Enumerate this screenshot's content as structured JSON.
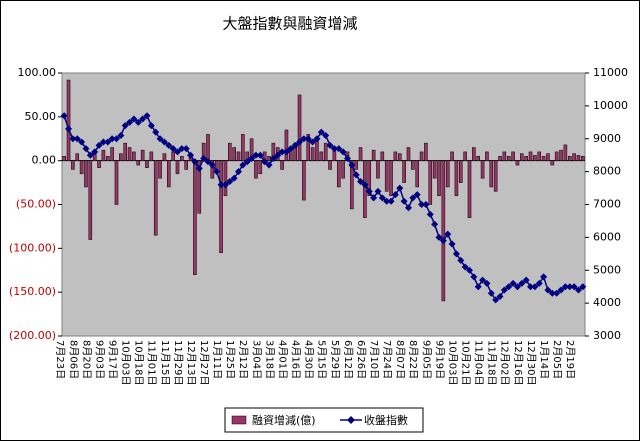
{
  "chart_data": {
    "type": "bar_line",
    "title": "大盤指數與融資增減",
    "categories": [
      "7月23日",
      null,
      null,
      "8月06日",
      null,
      null,
      "8月20日",
      null,
      null,
      "9月03日",
      null,
      null,
      "9月17日",
      null,
      null,
      "10月03日",
      null,
      null,
      "10月18日",
      null,
      null,
      "11月01日",
      null,
      null,
      "11月15日",
      null,
      null,
      "11月29日",
      null,
      null,
      "12月13日",
      null,
      null,
      "12月27日",
      null,
      null,
      "1月11日",
      null,
      null,
      "1月25日",
      null,
      null,
      "2月12日",
      null,
      null,
      "3月04日",
      null,
      null,
      "3月18日",
      null,
      null,
      "4月01日",
      null,
      null,
      "4月16日",
      null,
      null,
      "4月30日",
      null,
      null,
      "5月15日",
      null,
      null,
      "5月29日",
      null,
      null,
      "6月12日",
      null,
      null,
      "6月26日",
      null,
      null,
      "7月10日",
      null,
      null,
      "7月24日",
      null,
      null,
      "8月07日",
      null,
      null,
      "8月22日",
      null,
      null,
      "9月05日",
      null,
      null,
      "9月19日",
      null,
      null,
      "10月03日",
      null,
      null,
      "10月21日",
      null,
      null,
      "11月04日",
      null,
      null,
      "11月18日",
      null,
      null,
      "12月02日",
      null,
      null,
      "12月16日",
      null,
      null,
      "12月30日",
      null,
      null,
      "1月14日",
      null,
      null,
      "2月05日",
      null,
      null,
      "2月19日",
      null,
      null
    ],
    "series": [
      {
        "name": "融資增減(億)",
        "type": "bar",
        "color": "#993366",
        "values": [
          5,
          92,
          -10,
          8,
          -15,
          -30,
          -90,
          10,
          -8,
          12,
          5,
          15,
          -50,
          8,
          20,
          15,
          10,
          -5,
          12,
          -8,
          10,
          -85,
          -20,
          8,
          -30,
          10,
          -15,
          5,
          -10,
          8,
          -130,
          -60,
          20,
          30,
          -20,
          -10,
          -105,
          -40,
          20,
          15,
          10,
          30,
          10,
          25,
          -20,
          -15,
          10,
          5,
          20,
          15,
          -10,
          35,
          15,
          20,
          75,
          -45,
          30,
          15,
          25,
          10,
          20,
          -10,
          15,
          -30,
          -20,
          10,
          -55,
          -10,
          15,
          -65,
          -40,
          12,
          -20,
          10,
          -35,
          -40,
          10,
          8,
          -25,
          15,
          -10,
          -30,
          10,
          20,
          -50,
          -20,
          -40,
          -160,
          -30,
          10,
          -40,
          -25,
          10,
          -65,
          15,
          5,
          -20,
          10,
          -30,
          -35,
          5,
          10,
          5,
          10,
          -5,
          8,
          5,
          10,
          6,
          10,
          5,
          8,
          -5,
          10,
          12,
          18,
          5,
          8,
          6,
          5
        ]
      },
      {
        "name": "收盤指數",
        "type": "line",
        "axis": "y2",
        "color": "#000080",
        "values": [
          9700,
          9300,
          9000,
          9000,
          8900,
          8700,
          8500,
          8600,
          8800,
          8900,
          8900,
          9000,
          9000,
          9100,
          9400,
          9500,
          9600,
          9500,
          9600,
          9700,
          9400,
          9200,
          9000,
          8900,
          8800,
          8700,
          8600,
          8700,
          8700,
          8500,
          8300,
          8100,
          8400,
          8300,
          8200,
          8000,
          7600,
          7600,
          7700,
          7800,
          8000,
          8200,
          8300,
          8400,
          8500,
          8500,
          8300,
          8200,
          8400,
          8500,
          8600,
          8600,
          8700,
          8800,
          8900,
          9000,
          9000,
          8900,
          9000,
          9200,
          9100,
          8800,
          8700,
          8700,
          8600,
          8400,
          8200,
          7900,
          7700,
          7600,
          7400,
          7200,
          7400,
          7200,
          7100,
          7100,
          7300,
          7500,
          7100,
          6900,
          7200,
          7300,
          7000,
          7000,
          6700,
          6400,
          6000,
          5900,
          6100,
          5800,
          5500,
          5300,
          5100,
          5000,
          4800,
          4500,
          4700,
          4600,
          4300,
          4100,
          4200,
          4400,
          4500,
          4600,
          4500,
          4600,
          4700,
          4500,
          4500,
          4600,
          4800,
          4400,
          4300,
          4300,
          4400,
          4500,
          4500,
          4500,
          4400,
          4500
        ]
      }
    ],
    "ylim": [
      -200,
      100
    ],
    "yticks": [
      {
        "value": 100,
        "label": "100.00"
      },
      {
        "value": 50,
        "label": "50.00"
      },
      {
        "value": 0,
        "label": "0.00"
      },
      {
        "value": -50,
        "label": "(50.00)"
      },
      {
        "value": -100,
        "label": "(100.00)"
      },
      {
        "value": -150,
        "label": "(150.00)"
      },
      {
        "value": -200,
        "label": "(200.00)"
      }
    ],
    "y2lim": [
      3000,
      11000
    ],
    "y2ticks": [
      11000,
      10000,
      9000,
      8000,
      7000,
      6000,
      5000,
      4000,
      3000
    ]
  }
}
